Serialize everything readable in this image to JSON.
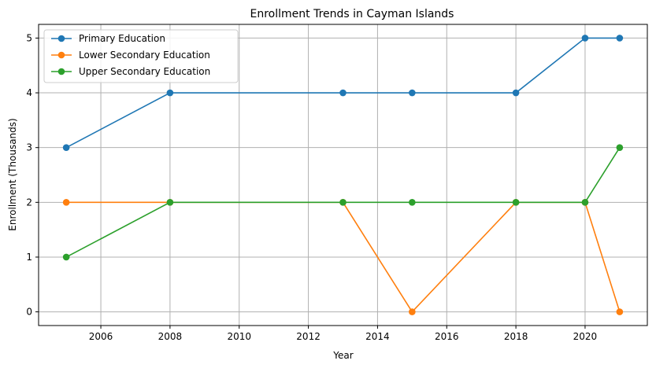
{
  "chart_data": {
    "type": "line",
    "title": "Enrollment Trends in Cayman Islands",
    "xlabel": "Year",
    "ylabel": "Enrollment (Thousands)",
    "x": [
      2005,
      2008,
      2013,
      2015,
      2018,
      2020,
      2021
    ],
    "xlim": [
      2004.2,
      2021.8
    ],
    "ylim": [
      -0.25,
      5.25
    ],
    "xticks": [
      2006,
      2008,
      2010,
      2012,
      2014,
      2016,
      2018,
      2020
    ],
    "yticks": [
      0,
      1,
      2,
      3,
      4,
      5
    ],
    "grid": true,
    "legend_position": "upper-left",
    "series": [
      {
        "name": "Primary Education",
        "color": "#1f77b4",
        "values": [
          3,
          4,
          4,
          4,
          4,
          5,
          5
        ]
      },
      {
        "name": "Lower Secondary Education",
        "color": "#ff7f0e",
        "values": [
          2,
          2,
          2,
          0,
          2,
          2,
          0
        ]
      },
      {
        "name": "Upper Secondary Education",
        "color": "#2ca02c",
        "values": [
          1,
          2,
          2,
          2,
          2,
          2,
          3
        ]
      }
    ]
  }
}
